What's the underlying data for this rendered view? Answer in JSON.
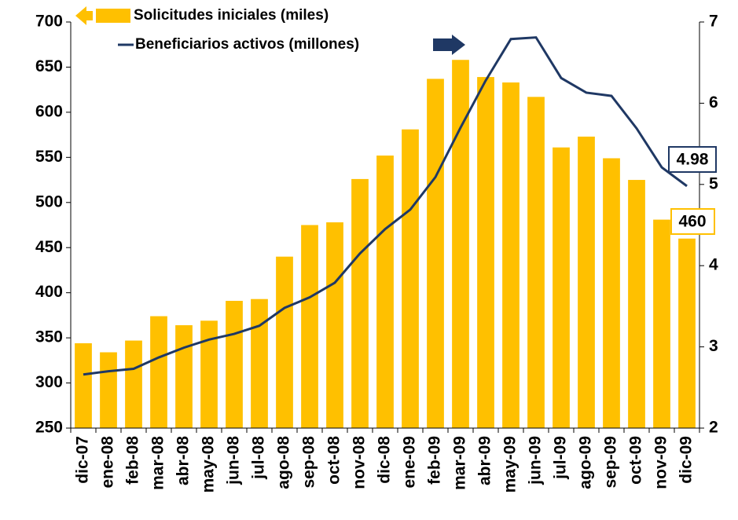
{
  "chart_data": {
    "type": "bar-line",
    "categories": [
      "dic-07",
      "ene-08",
      "feb-08",
      "mar-08",
      "abr-08",
      "may-08",
      "jun-08",
      "jul-08",
      "ago-08",
      "sep-08",
      "oct-08",
      "nov-08",
      "dic-08",
      "ene-09",
      "feb-09",
      "mar-09",
      "abr-09",
      "may-09",
      "jun-09",
      "jul-09",
      "ago-09",
      "sep-09",
      "oct-09",
      "nov-09",
      "dic-09"
    ],
    "series": [
      {
        "name": "Solicitudes iniciales (miles)",
        "type": "bar",
        "color": "#ffc000",
        "axis": "y",
        "values": [
          344,
          334,
          347,
          374,
          364,
          369,
          391,
          393,
          440,
          475,
          478,
          526,
          552,
          581,
          637,
          658,
          639,
          633,
          617,
          561,
          573,
          549,
          525,
          481,
          460
        ]
      },
      {
        "name": "Beneficiarios activos (millones)",
        "type": "line",
        "color": "#1f3864",
        "axis": "y2",
        "values": [
          2.66,
          2.7,
          2.73,
          2.87,
          2.99,
          3.09,
          3.16,
          3.26,
          3.48,
          3.61,
          3.79,
          4.15,
          4.45,
          4.69,
          5.09,
          5.7,
          6.28,
          6.79,
          6.81,
          6.31,
          6.13,
          6.09,
          5.69,
          5.21,
          4.98
        ]
      }
    ],
    "ylim": [
      250,
      700
    ],
    "yticks": [
      250,
      300,
      350,
      400,
      450,
      500,
      550,
      600,
      650,
      700
    ],
    "y2lim": [
      2,
      7
    ],
    "y2ticks": [
      2,
      3,
      4,
      5,
      6,
      7
    ]
  }
}
